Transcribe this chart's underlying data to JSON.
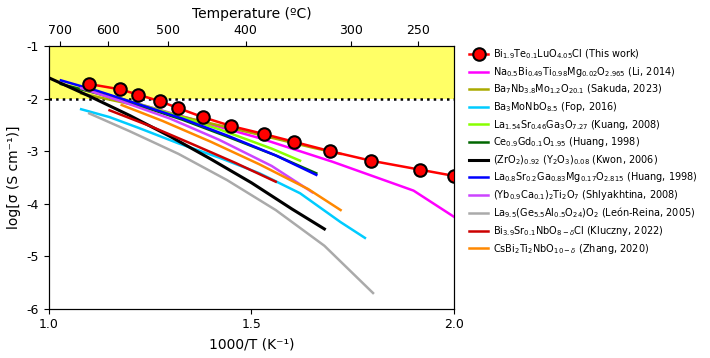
{
  "xlabel_bottom": "1000/T (K⁻¹)",
  "xlabel_top": "Temperature (ºC)",
  "ylabel": "log[σ (S cm⁻¹)]",
  "xlim": [
    1.0,
    2.0
  ],
  "ylim": [
    -6,
    -1
  ],
  "yticks": [
    -6,
    -5,
    -4,
    -3,
    -2,
    -1
  ],
  "ytick_labels": [
    "-6",
    "-5",
    "-4",
    "-3",
    "-2",
    "-1"
  ],
  "top_xticks": [
    700,
    600,
    500,
    400,
    300,
    250
  ],
  "dotted_line_y": -2,
  "yellow_bg_ylim": [
    -2,
    -1
  ],
  "figsize": [
    7.1,
    3.58
  ],
  "dpi": 100,
  "series": [
    {
      "label": "Bi$_{1.9}$Te$_{0.1}$LuO$_{4.05}$Cl (This work)",
      "color": "#ff0000",
      "lw": 1.8,
      "marker": "o",
      "markersize": 9,
      "markerfacecolor": "#ff0000",
      "markeredgecolor": "#000000",
      "markeredgewidth": 1.5,
      "x": [
        1.1,
        1.175,
        1.22,
        1.275,
        1.32,
        1.38,
        1.45,
        1.53,
        1.605,
        1.695,
        1.795,
        1.915,
        2.0
      ],
      "y": [
        -1.72,
        -1.82,
        -1.92,
        -2.05,
        -2.18,
        -2.35,
        -2.52,
        -2.67,
        -2.82,
        -3.0,
        -3.18,
        -3.35,
        -3.47
      ]
    },
    {
      "label": "Na$_{0.5}$Bi$_{0.49}$Ti$_{0.98}$Mg$_{0.02}$O$_{2.965}$ (Li, 2014)",
      "color": "#ff00ff",
      "lw": 1.8,
      "marker": null,
      "x": [
        1.08,
        1.2,
        1.35,
        1.52,
        1.7,
        1.9,
        2.0
      ],
      "y": [
        -1.78,
        -2.05,
        -2.38,
        -2.75,
        -3.2,
        -3.75,
        -4.25
      ]
    },
    {
      "label": "Ba$_7$Nb$_{3.8}$Mo$_{1.2}$O$_{20.1}$ (Sakuda, 2023)",
      "color": "#aaaa00",
      "lw": 1.8,
      "marker": null,
      "x": [
        1.08,
        1.2,
        1.35,
        1.5,
        1.65,
        1.72
      ],
      "y": [
        -1.9,
        -2.1,
        -2.38,
        -2.65,
        -2.93,
        -3.05
      ]
    },
    {
      "label": "Ba$_3$MoNbO$_{8.5}$ (Fop, 2016)",
      "color": "#00ccff",
      "lw": 1.8,
      "marker": null,
      "x": [
        1.08,
        1.15,
        1.22,
        1.32,
        1.42,
        1.52,
        1.62,
        1.72,
        1.78
      ],
      "y": [
        -2.2,
        -2.35,
        -2.55,
        -2.85,
        -3.12,
        -3.42,
        -3.8,
        -4.35,
        -4.65
      ]
    },
    {
      "label": "La$_{1.54}$Sr$_{0.46}$Ga$_3$O$_{7.27}$ (Kuang, 2008)",
      "color": "#88ff00",
      "lw": 1.8,
      "marker": null,
      "x": [
        1.08,
        1.18,
        1.3,
        1.42,
        1.55,
        1.62
      ],
      "y": [
        -1.82,
        -2.0,
        -2.28,
        -2.58,
        -2.95,
        -3.18
      ]
    },
    {
      "label": "Ce$_{0.9}$Gd$_{0.1}$O$_{1.95}$ (Huang, 1998)",
      "color": "#006600",
      "lw": 1.8,
      "marker": null,
      "x": [
        1.03,
        1.12,
        1.22,
        1.33,
        1.44,
        1.56,
        1.66
      ],
      "y": [
        -1.72,
        -1.9,
        -2.12,
        -2.4,
        -2.72,
        -3.08,
        -3.42
      ]
    },
    {
      "label": "(ZrO$_2$)$_{0.92}$ (Y$_2$O$_3$)$_{0.08}$ (Kwon, 2006)",
      "color": "#000000",
      "lw": 2.2,
      "marker": null,
      "x": [
        1.0,
        1.1,
        1.2,
        1.3,
        1.4,
        1.5,
        1.6,
        1.68
      ],
      "y": [
        -1.6,
        -1.95,
        -2.32,
        -2.72,
        -3.15,
        -3.6,
        -4.1,
        -4.48
      ]
    },
    {
      "label": "La$_{0.8}$Sr$_{0.2}$Ga$_{0.83}$Mg$_{0.17}$O$_{2.815}$ (Huang, 1998)",
      "color": "#0000ff",
      "lw": 1.8,
      "marker": null,
      "x": [
        1.03,
        1.12,
        1.22,
        1.33,
        1.44,
        1.56,
        1.66
      ],
      "y": [
        -1.65,
        -1.85,
        -2.1,
        -2.38,
        -2.7,
        -3.08,
        -3.45
      ]
    },
    {
      "label": "(Yb$_{0.9}$Ca$_{0.1}$)$_2$Ti$_2$O$_7$ (Shlyakhtina, 2008)",
      "color": "#cc44ff",
      "lw": 1.8,
      "marker": null,
      "x": [
        1.08,
        1.18,
        1.3,
        1.42,
        1.55,
        1.65
      ],
      "y": [
        -1.8,
        -2.05,
        -2.38,
        -2.78,
        -3.28,
        -3.78
      ]
    },
    {
      "label": "La$_{9.5}$(Ge$_{5.5}$Al$_{0.5}$O$_{24}$)O$_2$ (León-Reina, 2005)",
      "color": "#aaaaaa",
      "lw": 1.8,
      "marker": null,
      "x": [
        1.1,
        1.2,
        1.32,
        1.44,
        1.56,
        1.68,
        1.8
      ],
      "y": [
        -2.28,
        -2.62,
        -3.05,
        -3.55,
        -4.12,
        -4.8,
        -5.7
      ]
    },
    {
      "label": "Bi$_{3.9}$Sr$_{0.1}$NbO$_{8-δ}$Cl (Kluczny, 2022)",
      "color": "#cc0000",
      "lw": 1.8,
      "marker": null,
      "x": [
        1.15,
        1.25,
        1.35,
        1.46,
        1.56
      ],
      "y": [
        -2.22,
        -2.52,
        -2.85,
        -3.22,
        -3.58
      ]
    },
    {
      "label": "CsBi$_2$Ti$_2$NbO$_{10-δ}$ (Zhang, 2020)",
      "color": "#ff8800",
      "lw": 1.8,
      "marker": null,
      "x": [
        1.18,
        1.28,
        1.4,
        1.52,
        1.64,
        1.72
      ],
      "y": [
        -2.12,
        -2.42,
        -2.82,
        -3.25,
        -3.72,
        -4.12
      ]
    }
  ]
}
